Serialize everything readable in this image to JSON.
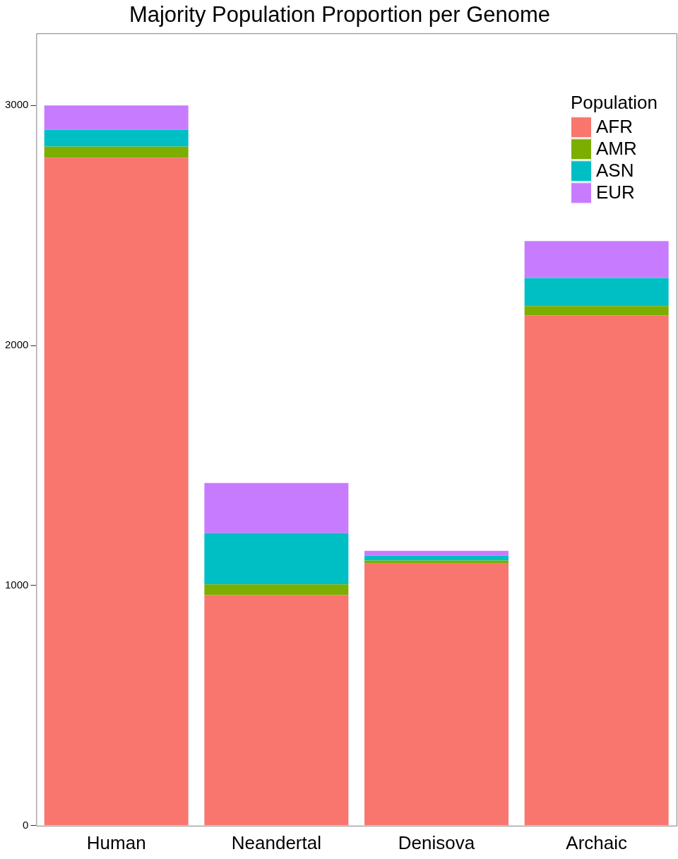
{
  "chart_data": {
    "type": "bar",
    "title": "Majority Population Proportion per Genome",
    "categories": [
      "Human",
      "Neandertal",
      "Denisova",
      "Archaic"
    ],
    "stacked": true,
    "legend": "top right",
    "legend_title": "Population",
    "grid": false,
    "ylim": [
      0,
      3300
    ],
    "yticks": [
      0,
      1000,
      2000,
      3000
    ],
    "series": [
      {
        "name": "AFR",
        "color": "#f8766d",
        "values": [
          2782,
          961,
          1092,
          2126
        ]
      },
      {
        "name": "AMR",
        "color": "#7cae00",
        "values": [
          46,
          44,
          12,
          38
        ]
      },
      {
        "name": "ASN",
        "color": "#00bfc4",
        "values": [
          70,
          213,
          20,
          117
        ]
      },
      {
        "name": "EUR",
        "color": "#c77cff",
        "values": [
          102,
          209,
          21,
          154
        ]
      }
    ]
  }
}
